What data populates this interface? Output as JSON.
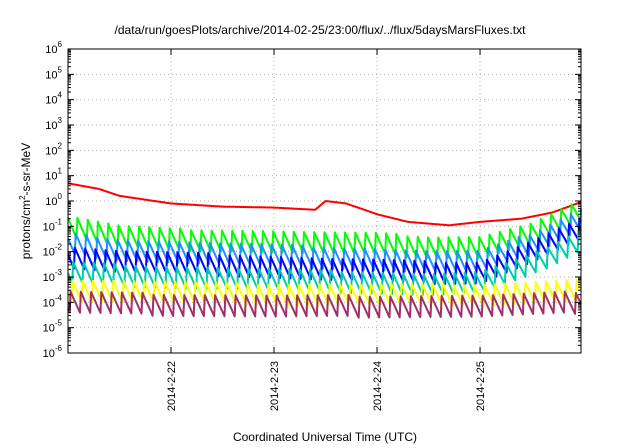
{
  "chart_data": {
    "type": "line",
    "title": "/data/run/goesPlots/archive/2014-02-25/23:00/flux/../flux/5daysMarsFluxes.txt",
    "xlabel": "Coordinated Universal Time (UTC)",
    "ylabel": "protons/cm2-s-sr-MeV",
    "ylabel_parts": {
      "base": "protons/cm",
      "sup": "2",
      "rest": "-s-sr-MeV"
    },
    "yscale": "log",
    "ylim": [
      1e-06,
      1000000.0
    ],
    "y_ticks": [
      {
        "base": "10",
        "exp": "-6"
      },
      {
        "base": "10",
        "exp": "-5"
      },
      {
        "base": "10",
        "exp": "-4"
      },
      {
        "base": "10",
        "exp": "-3"
      },
      {
        "base": "10",
        "exp": "-2"
      },
      {
        "base": "10",
        "exp": "-1"
      },
      {
        "base": "10",
        "exp": "0"
      },
      {
        "base": "10",
        "exp": "1"
      },
      {
        "base": "10",
        "exp": "2"
      },
      {
        "base": "10",
        "exp": "3"
      },
      {
        "base": "10",
        "exp": "4"
      },
      {
        "base": "10",
        "exp": "5"
      },
      {
        "base": "10",
        "exp": "6"
      }
    ],
    "x_ticks": [
      "2014-2-22",
      "2014-2-23",
      "2014-2-24",
      "2014-2-25"
    ],
    "xlim_days": [
      21.0,
      25.98
    ],
    "grid": true,
    "series": [
      {
        "color": "#ff0000",
        "zigzag": false,
        "points": [
          [
            21.0,
            5.0
          ],
          [
            21.3,
            3.0
          ],
          [
            21.5,
            1.6
          ],
          [
            22.0,
            0.8
          ],
          [
            22.5,
            0.6
          ],
          [
            23.0,
            0.55
          ],
          [
            23.4,
            0.45
          ],
          [
            23.5,
            1.0
          ],
          [
            23.7,
            0.8
          ],
          [
            24.0,
            0.3
          ],
          [
            24.3,
            0.15
          ],
          [
            24.7,
            0.11
          ],
          [
            25.0,
            0.15
          ],
          [
            25.4,
            0.2
          ],
          [
            25.7,
            0.35
          ],
          [
            25.98,
            0.9
          ]
        ]
      },
      {
        "color": "#00ff00",
        "zigzag": true,
        "points": [
          [
            21.0,
            0.1
          ],
          [
            21.5,
            0.04
          ],
          [
            22.0,
            0.03
          ],
          [
            22.5,
            0.028
          ],
          [
            23.0,
            0.025
          ],
          [
            23.5,
            0.022
          ],
          [
            24.0,
            0.02
          ],
          [
            24.5,
            0.015
          ],
          [
            25.0,
            0.015
          ],
          [
            25.5,
            0.05
          ],
          [
            25.98,
            0.4
          ]
        ]
      },
      {
        "color": "#1e90ff",
        "zigzag": true,
        "points": [
          [
            21.0,
            0.02
          ],
          [
            21.5,
            0.012
          ],
          [
            22.0,
            0.01
          ],
          [
            22.5,
            0.008
          ],
          [
            23.0,
            0.007
          ],
          [
            23.5,
            0.006
          ],
          [
            24.0,
            0.005
          ],
          [
            24.5,
            0.004
          ],
          [
            25.0,
            0.004
          ],
          [
            25.5,
            0.02
          ],
          [
            25.98,
            0.2
          ]
        ]
      },
      {
        "color": "#0000ff",
        "zigzag": true,
        "points": [
          [
            21.0,
            0.006
          ],
          [
            21.5,
            0.004
          ],
          [
            22.0,
            0.0035
          ],
          [
            22.5,
            0.003
          ],
          [
            23.0,
            0.0025
          ],
          [
            23.5,
            0.002
          ],
          [
            24.0,
            0.0018
          ],
          [
            24.5,
            0.0015
          ],
          [
            25.0,
            0.0015
          ],
          [
            25.5,
            0.01
          ],
          [
            25.98,
            0.08
          ]
        ]
      },
      {
        "color": "#00ccaa",
        "zigzag": true,
        "points": [
          [
            21.0,
            0.0015
          ],
          [
            21.5,
            0.0012
          ],
          [
            22.0,
            0.001
          ],
          [
            22.5,
            0.0009
          ],
          [
            23.0,
            0.0008
          ],
          [
            23.5,
            0.0007
          ],
          [
            24.0,
            0.0006
          ],
          [
            24.5,
            0.0005
          ],
          [
            25.0,
            0.0006
          ],
          [
            25.5,
            0.003
          ],
          [
            25.98,
            0.03
          ]
        ]
      },
      {
        "color": "#ffff00",
        "zigzag": true,
        "points": [
          [
            21.0,
            0.0003
          ],
          [
            22.0,
            0.00025
          ],
          [
            23.0,
            0.0002
          ],
          [
            24.0,
            0.0002
          ],
          [
            25.0,
            0.0002
          ],
          [
            25.98,
            0.0003
          ]
        ]
      },
      {
        "color": "#a0306a",
        "zigzag": true,
        "points": [
          [
            21.0,
            0.0001
          ],
          [
            22.0,
            8e-05
          ],
          [
            23.0,
            7e-05
          ],
          [
            24.0,
            7e-05
          ],
          [
            25.0,
            7e-05
          ],
          [
            25.98,
            0.0001
          ]
        ]
      }
    ]
  }
}
